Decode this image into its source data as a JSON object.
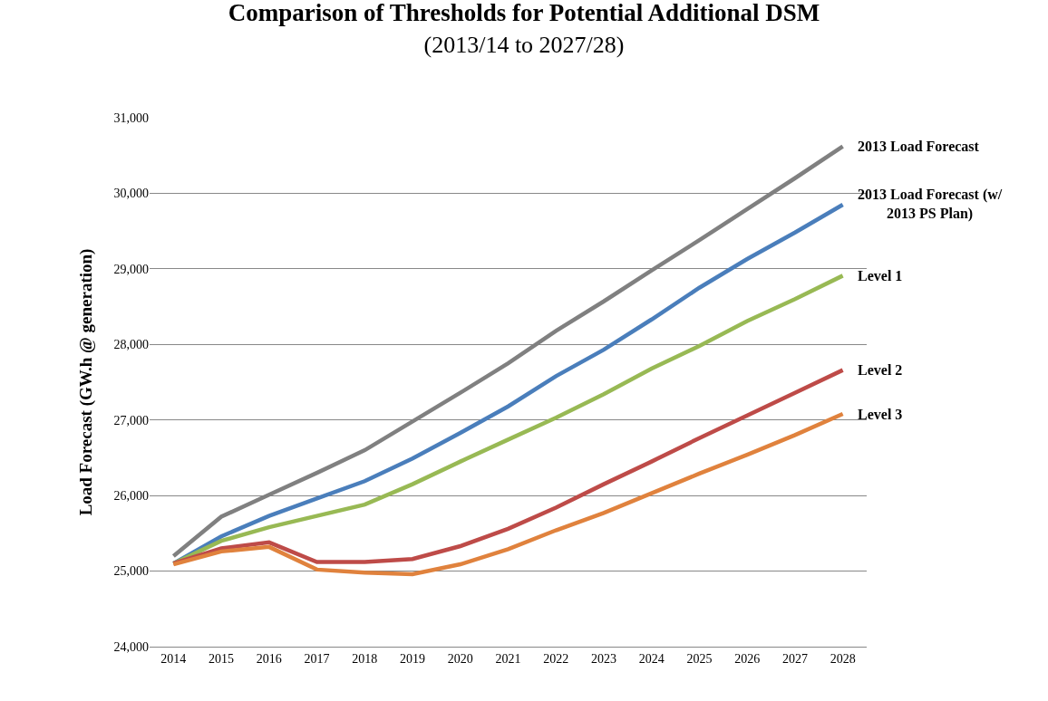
{
  "chart_data": {
    "type": "line",
    "title": "Comparison of Thresholds for Potential Additional DSM",
    "subtitle": "(2013/14 to 2027/28)",
    "ylabel": "Load Forecast (GW.h @ generation)",
    "categories": [
      "2014",
      "2015",
      "2016",
      "2017",
      "2018",
      "2019",
      "2020",
      "2021",
      "2022",
      "2023",
      "2024",
      "2025",
      "2026",
      "2027",
      "2028"
    ],
    "series": [
      {
        "name": "2013 Load Forecast",
        "color": "#808080",
        "values": [
          25200,
          25720,
          26010,
          26300,
          26600,
          26980,
          27360,
          27750,
          28180,
          28570,
          28980,
          29380,
          29790,
          30200,
          30620
        ]
      },
      {
        "name": "2013 Load Forecast (w/ 2013 PS Plan)",
        "color": "#4a7ebb",
        "values": [
          25100,
          25460,
          25730,
          25960,
          26190,
          26490,
          26830,
          27180,
          27580,
          27930,
          28330,
          28750,
          29130,
          29480,
          29850
        ]
      },
      {
        "name": "Level 1",
        "color": "#98b954",
        "values": [
          25100,
          25400,
          25580,
          25730,
          25880,
          26150,
          26450,
          26740,
          27030,
          27340,
          27680,
          27980,
          28310,
          28600,
          28910
        ]
      },
      {
        "name": "Level 2",
        "color": "#be4b48",
        "values": [
          25100,
          25300,
          25380,
          25120,
          25120,
          25160,
          25330,
          25560,
          25840,
          26150,
          26450,
          26760,
          27060,
          27360,
          27660
        ]
      },
      {
        "name": "Level 3",
        "color": "#e0823d",
        "values": [
          25090,
          25260,
          25320,
          25020,
          24980,
          24960,
          25090,
          25290,
          25540,
          25770,
          26030,
          26290,
          26540,
          26800,
          27080
        ]
      }
    ],
    "ylim": [
      24000,
      31000
    ],
    "yticks": [
      {
        "value": 24000,
        "label": "24,000"
      },
      {
        "value": 25000,
        "label": "25,000"
      },
      {
        "value": 26000,
        "label": "26,000"
      },
      {
        "value": 27000,
        "label": "27,000"
      },
      {
        "value": 28000,
        "label": "28,000"
      },
      {
        "value": 29000,
        "label": "29,000"
      },
      {
        "value": 30000,
        "label": "30,000"
      },
      {
        "value": 31000,
        "label": "31,000"
      }
    ],
    "grid": "y",
    "marker": "none",
    "line_style": "solid"
  }
}
